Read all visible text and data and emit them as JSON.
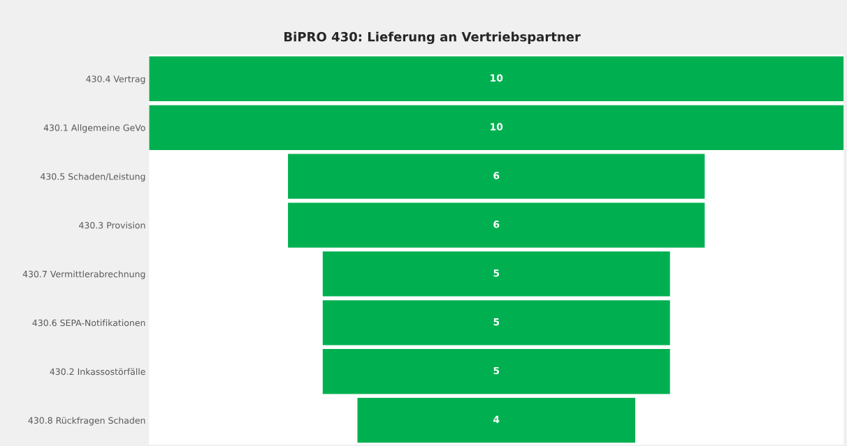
{
  "chart_data": {
    "type": "other",
    "title": "BiPRO 430: Lieferung an Vertriebspartner",
    "categories": [
      "430.4 Vertrag",
      "430.1 Allgemeine GeVo",
      "430.5 Schaden/Leistung",
      "430.3 Provision",
      "430.7 Vermittlerabrechnung",
      "430.6 SEPA-Notifikationen",
      "430.2 Inkassostörfälle",
      "430.8 Rückfragen Schaden"
    ],
    "values": [
      10,
      10,
      6,
      6,
      5,
      5,
      5,
      4
    ],
    "color": "#00b050",
    "data_labels": true
  }
}
